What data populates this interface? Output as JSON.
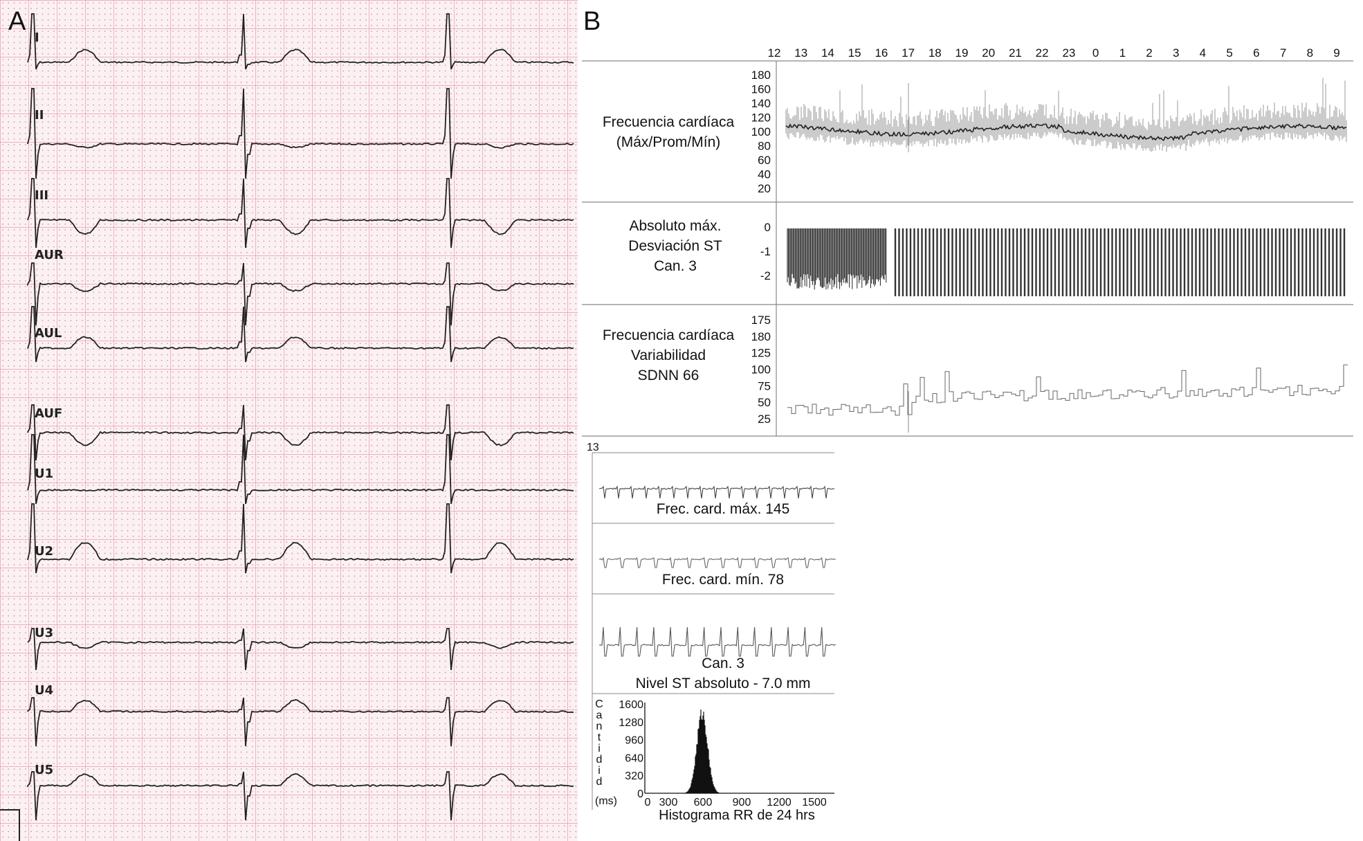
{
  "panels": {
    "a": "A",
    "b": "B"
  },
  "ecg": {
    "leads": [
      "I",
      "II",
      "III",
      "AUR",
      "AUL",
      "AUF",
      "U1",
      "U2",
      "U3",
      "U4",
      "U5"
    ]
  },
  "holter": {
    "hours": [
      "12",
      "13",
      "14",
      "15",
      "16",
      "17",
      "18",
      "19",
      "20",
      "21",
      "22",
      "23",
      "0",
      "1",
      "2",
      "3",
      "4",
      "5",
      "6",
      "7",
      "8",
      "9"
    ],
    "hr_section": {
      "label_line1": "Frecuencia cardíaca",
      "label_line2": "(Máx/Prom/Mín)",
      "ticks": [
        "180",
        "160",
        "140",
        "120",
        "100",
        "80",
        "60",
        "40",
        "20"
      ]
    },
    "st_section": {
      "label_line1": "Absoluto máx.",
      "label_line2": "Desviación ST",
      "label_line3": "Can. 3",
      "ticks": [
        "0",
        "-1",
        "-2"
      ]
    },
    "hrv_section": {
      "label_line1": "Frecuencia cardíaca",
      "label_line2": "Variabilidad",
      "label_line3": "SDNN 66",
      "ticks": [
        "175",
        "180",
        "125",
        "100",
        "75",
        "50",
        "25"
      ]
    }
  },
  "strips": {
    "start_hour": "13",
    "max_caption": "Frec. card. máx. 145",
    "min_caption": "Frec. card. mín. 78",
    "st_caption_line1": "Can. 3",
    "st_caption_line2": "Nivel ST absoluto - 7.0 mm"
  },
  "histogram": {
    "y_label_letters": [
      "C",
      "a",
      "n",
      "t",
      "i",
      "d",
      "i",
      "d"
    ],
    "y_unit": "(ms)",
    "y_ticks": [
      "1600",
      "1280",
      "960",
      "640",
      "320",
      "0"
    ],
    "x_ticks": [
      "0",
      "300",
      "600",
      "900",
      "1200",
      "1500"
    ],
    "title": "Histograma RR de 24 hrs"
  }
}
